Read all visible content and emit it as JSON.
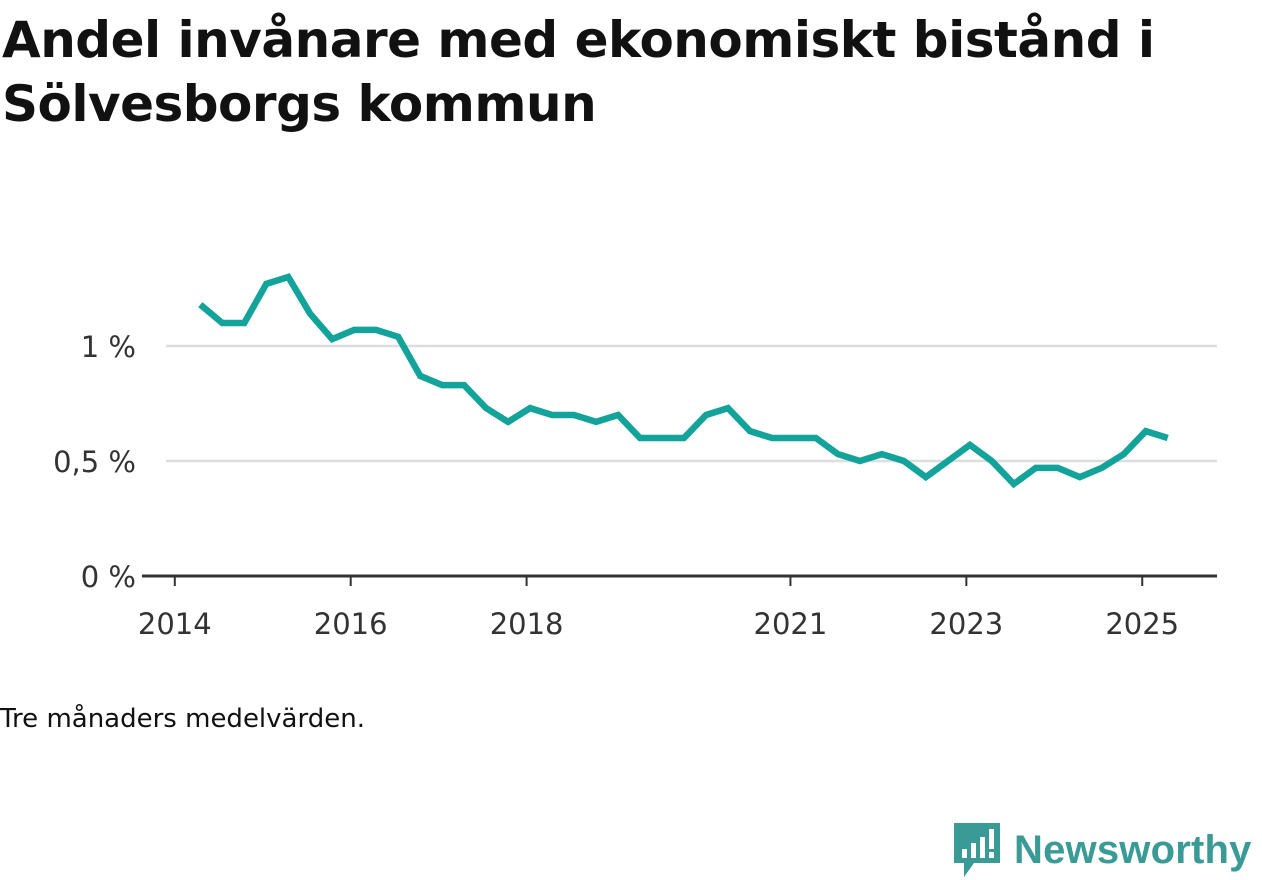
{
  "title": "Andel invånare med ekonomiskt bistånd i Sölvesborgs kommun",
  "note": "Tre månaders medelvärden.",
  "brand": {
    "name": "Newsworthy",
    "icon": "newsworthy-bar-chart-icon"
  },
  "colors": {
    "line": "#13a39a",
    "grid": "#dddddd",
    "axis": "#333333",
    "brand": "#3a9a96"
  },
  "chart_data": {
    "type": "line",
    "title": "Andel invånare med ekonomiskt bistånd i Sölvesborgs kommun",
    "xlabel": "",
    "ylabel": "",
    "ylim": [
      0,
      1.4
    ],
    "xlim": [
      2013.9,
      2025.85
    ],
    "grid": true,
    "y_ticks": [
      {
        "value": 0,
        "label": "0 %"
      },
      {
        "value": 0.5,
        "label": "0,5 %"
      },
      {
        "value": 1,
        "label": "1 %"
      }
    ],
    "x_ticks": [
      {
        "value": 2014.0,
        "label": "2014"
      },
      {
        "value": 2016.0,
        "label": "2016"
      },
      {
        "value": 2018.0,
        "label": "2018"
      },
      {
        "value": 2021.0,
        "label": "2021"
      },
      {
        "value": 2023.0,
        "label": "2023"
      },
      {
        "value": 2025.0,
        "label": "2025"
      }
    ],
    "series": [
      {
        "x": [
          2014.29,
          2014.54,
          2014.79,
          2015.04,
          2015.29,
          2015.54,
          2015.79,
          2016.04,
          2016.29,
          2016.54,
          2016.79,
          2017.04,
          2017.29,
          2017.54,
          2017.79,
          2018.04,
          2018.29,
          2018.54,
          2018.79,
          2019.04,
          2019.29,
          2019.54,
          2019.79,
          2020.04,
          2020.29,
          2020.54,
          2020.79,
          2021.04,
          2021.29,
          2021.54,
          2021.79,
          2022.04,
          2022.29,
          2022.54,
          2022.79,
          2023.04,
          2023.29,
          2023.54,
          2023.79,
          2024.04,
          2024.29,
          2024.54,
          2024.79,
          2025.04,
          2025.29
        ],
        "values": [
          1.18,
          1.1,
          1.1,
          1.27,
          1.3,
          1.14,
          1.03,
          1.07,
          1.07,
          1.04,
          0.87,
          0.83,
          0.83,
          0.73,
          0.67,
          0.73,
          0.7,
          0.7,
          0.67,
          0.7,
          0.6,
          0.6,
          0.6,
          0.7,
          0.73,
          0.63,
          0.6,
          0.6,
          0.6,
          0.53,
          0.5,
          0.53,
          0.5,
          0.43,
          0.5,
          0.57,
          0.5,
          0.4,
          0.47,
          0.47,
          0.43,
          0.47,
          0.53,
          0.63,
          0.6
        ]
      }
    ]
  }
}
